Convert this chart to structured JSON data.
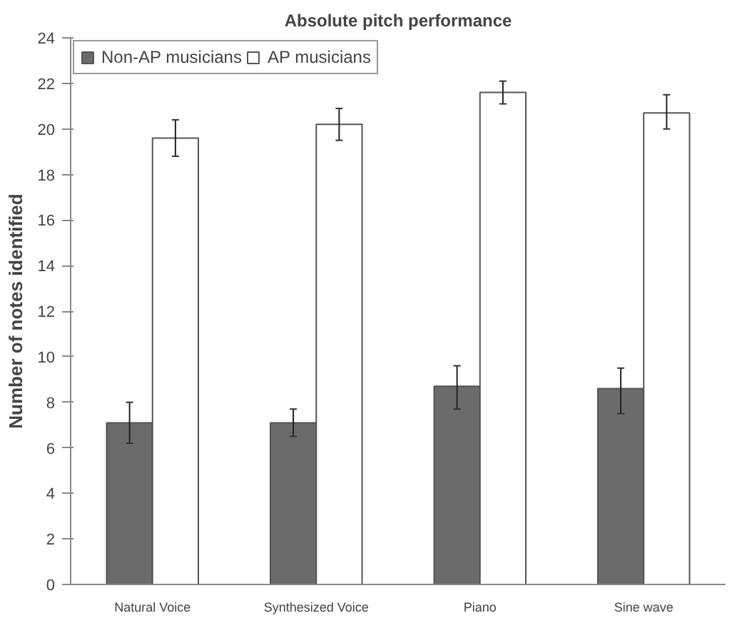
{
  "chart_data": {
    "type": "bar",
    "title": "Absolute pitch performance",
    "ylabel": "Number of notes identified",
    "categories": [
      "Natural Voice",
      "Synthesized Voice",
      "Piano",
      "Sine wave"
    ],
    "series": [
      {
        "name": "Non-AP musicians",
        "color": "#6b6b6b",
        "values": [
          7.1,
          7.1,
          8.7,
          8.6
        ],
        "errors": [
          [
            6.2,
            8.0
          ],
          [
            6.5,
            7.7
          ],
          [
            7.7,
            9.6
          ],
          [
            7.5,
            9.5
          ]
        ]
      },
      {
        "name": "AP musicians",
        "color": "#ffffff",
        "values": [
          19.6,
          20.2,
          21.6,
          20.7
        ],
        "errors": [
          [
            18.8,
            20.4
          ],
          [
            19.5,
            20.9
          ],
          [
            21.1,
            22.1
          ],
          [
            20.0,
            21.5
          ]
        ]
      }
    ],
    "ylim": [
      0,
      24
    ],
    "yticks": [
      0,
      2,
      4,
      6,
      8,
      10,
      12,
      14,
      16,
      18,
      20,
      22,
      24
    ],
    "grid": false,
    "legend": "top left"
  }
}
